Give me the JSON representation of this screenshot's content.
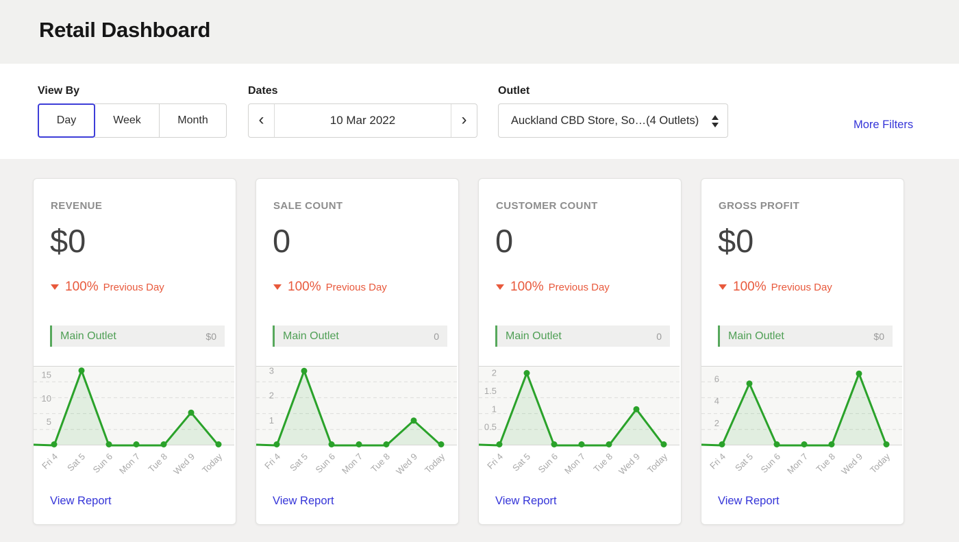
{
  "header": {
    "title": "Retail Dashboard"
  },
  "filters": {
    "view_by": {
      "label": "View By",
      "options": [
        "Day",
        "Week",
        "Month"
      ],
      "selected": "Day"
    },
    "dates": {
      "label": "Dates",
      "value": "10 Mar 2022",
      "prev_icon": "‹",
      "next_icon": "›"
    },
    "outlet": {
      "label": "Outlet",
      "value": "Auckland CBD Store, So…(4 Outlets)"
    },
    "more_filters": "More Filters"
  },
  "cards": [
    {
      "title": "REVENUE",
      "value": "$0",
      "change": "100%",
      "change_direction": "down",
      "change_period": "Previous Day",
      "outlet_name": "Main Outlet",
      "outlet_value": "$0",
      "view_report": "View Report"
    },
    {
      "title": "SALE COUNT",
      "value": "0",
      "change": "100%",
      "change_direction": "down",
      "change_period": "Previous Day",
      "outlet_name": "Main Outlet",
      "outlet_value": "0",
      "view_report": "View Report"
    },
    {
      "title": "CUSTOMER COUNT",
      "value": "0",
      "change": "100%",
      "change_direction": "down",
      "change_period": "Previous Day",
      "outlet_name": "Main Outlet",
      "outlet_value": "0",
      "view_report": "View Report"
    },
    {
      "title": "GROSS PROFIT",
      "value": "$0",
      "change": "100%",
      "change_direction": "down",
      "change_period": "Previous Day",
      "outlet_name": "Main Outlet",
      "outlet_value": "$0",
      "view_report": "View Report"
    }
  ],
  "chart_data": [
    {
      "type": "line",
      "title": "Revenue by day",
      "series_name": "Main Outlet",
      "x": [
        "Fri 4",
        "Sat 5",
        "Sun 6",
        "Mon 7",
        "Tue 8",
        "Wed 9",
        "Today"
      ],
      "values": [
        0,
        16,
        0,
        0,
        0,
        7,
        0
      ],
      "yticks": [
        5,
        10,
        15
      ],
      "ylim": [
        0,
        17
      ],
      "grid": "dashed-horizontal",
      "legend": "none"
    },
    {
      "type": "line",
      "title": "Sale count by day",
      "series_name": "Main Outlet",
      "x": [
        "Fri 4",
        "Sat 5",
        "Sun 6",
        "Mon 7",
        "Tue 8",
        "Wed 9",
        "Today"
      ],
      "values": [
        0,
        3,
        0,
        0,
        0,
        1,
        0
      ],
      "yticks": [
        1,
        2,
        3
      ],
      "ylim": [
        0,
        3.2
      ],
      "grid": "dashed-horizontal",
      "legend": "none"
    },
    {
      "type": "line",
      "title": "Customer count by day",
      "series_name": "Main Outlet",
      "x": [
        "Fri 4",
        "Sat 5",
        "Sun 6",
        "Mon 7",
        "Tue 8",
        "Wed 9",
        "Today"
      ],
      "values": [
        0,
        2,
        0,
        0,
        0,
        1,
        0
      ],
      "yticks": [
        0.5,
        1,
        1.5,
        2
      ],
      "ylim": [
        0,
        2.2
      ],
      "grid": "dashed-horizontal",
      "legend": "none"
    },
    {
      "type": "line",
      "title": "Gross profit by day",
      "series_name": "Main Outlet",
      "x": [
        "Fri 4",
        "Sat 5",
        "Sun 6",
        "Mon 7",
        "Tue 8",
        "Wed 9",
        "Today"
      ],
      "values": [
        0,
        5.6,
        0,
        0,
        0,
        6.5,
        0
      ],
      "yticks": [
        2,
        4,
        6
      ],
      "ylim": [
        0,
        7.2
      ],
      "grid": "dashed-horizontal",
      "legend": "none"
    }
  ],
  "colors": {
    "page_bg": "#f2f1f0",
    "header_bg": "#f1f1ef",
    "filterbar_bg": "#ffffff",
    "accent_blue": "#3434d8",
    "selected_border_blue": "#3d3dd8",
    "negative_orange": "#e8593c",
    "chart_green": "#2aa22a",
    "outlet_green": "#4f9f55",
    "plot_bg": "#f7f7f5"
  }
}
